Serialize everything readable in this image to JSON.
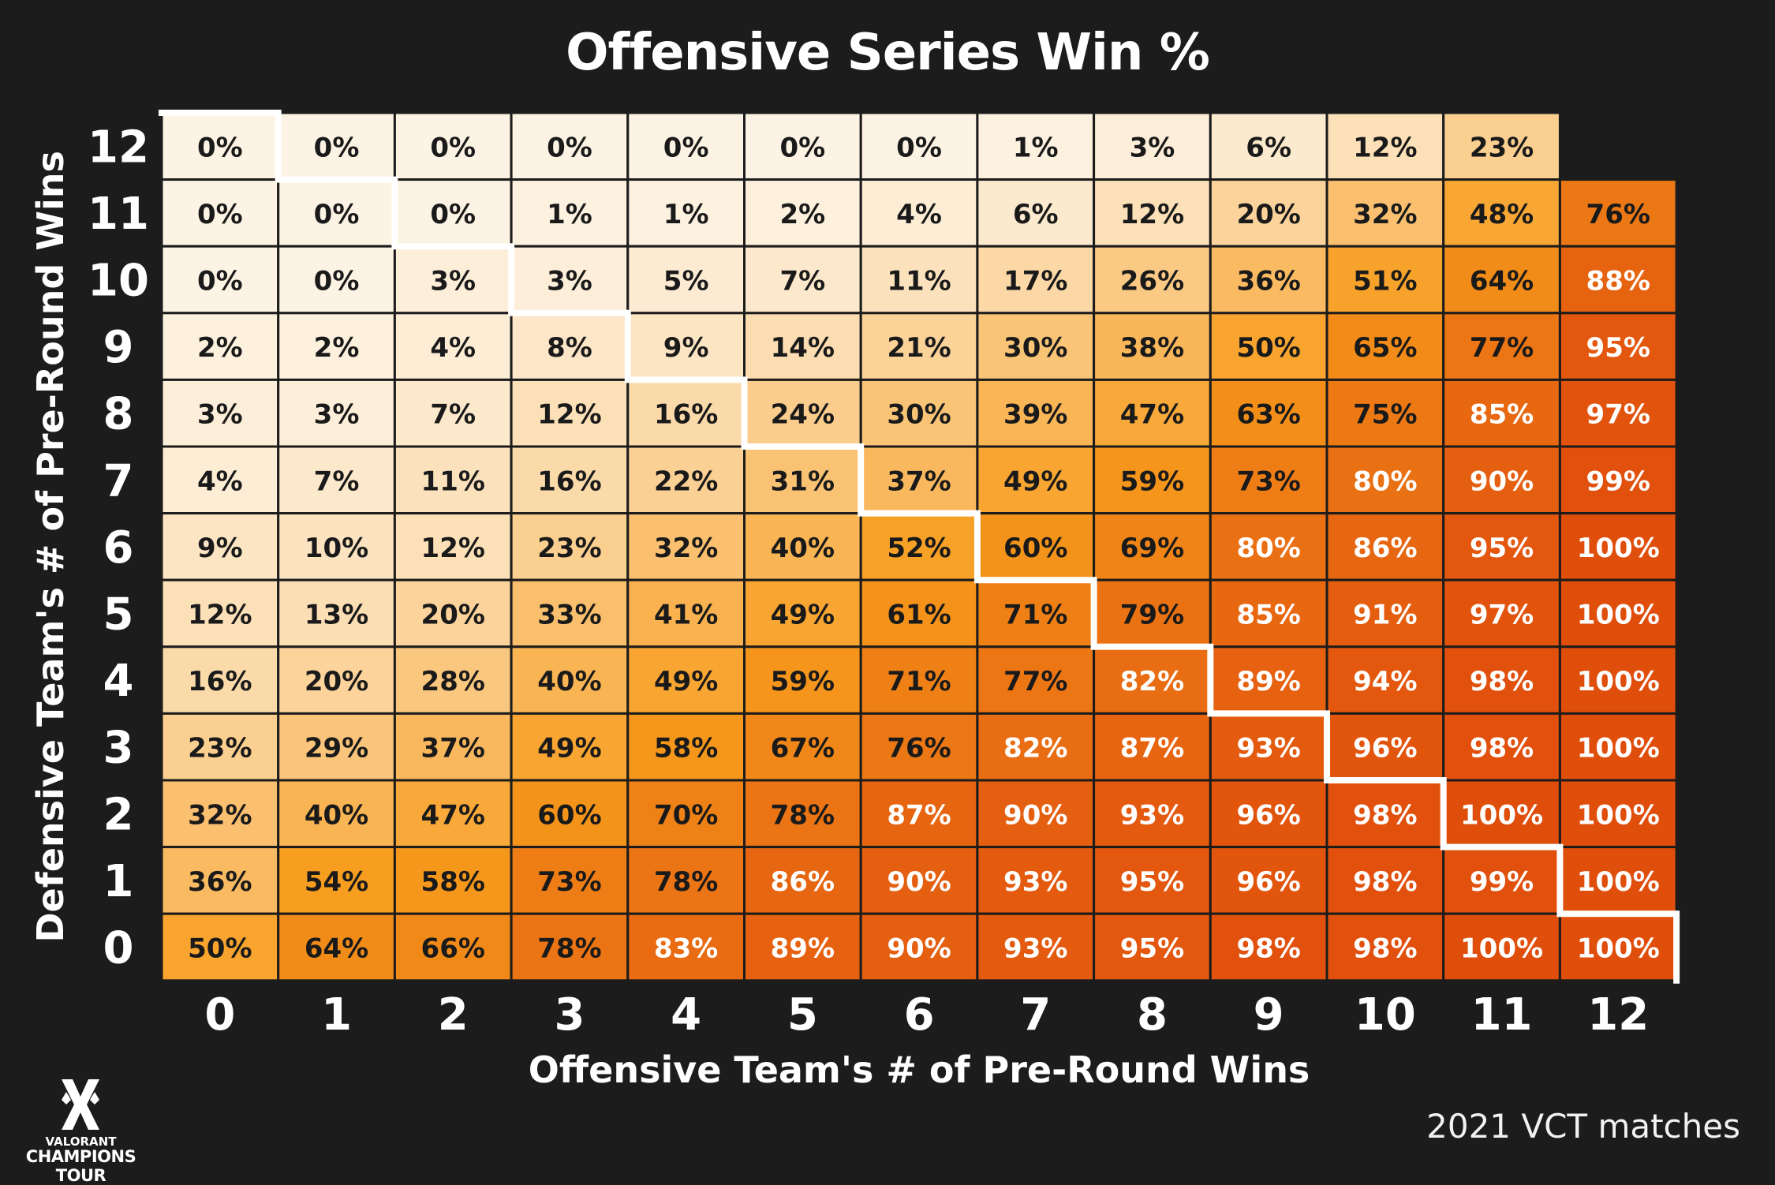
{
  "title": "Offensive Series Win %",
  "footnote": "2021 VCT matches",
  "logo": {
    "line1": "VALORANT",
    "line2": "CHAMPIONS TOUR",
    "icon": "vct-logo-icon"
  },
  "colors": {
    "background": "#1c1c1c",
    "low": "#fdf3e4",
    "mid": "#f79c1c",
    "high": "#e04e0c",
    "staircase": "#ffffff"
  },
  "chart_data": {
    "type": "heatmap",
    "title": "Offensive Series Win %",
    "xlabel": "Offensive Team's # of Pre-Round Wins",
    "ylabel": "Defensive Team's # of Pre-Round Wins",
    "x": [
      "0",
      "1",
      "2",
      "3",
      "4",
      "5",
      "6",
      "7",
      "8",
      "9",
      "10",
      "11",
      "12"
    ],
    "y": [
      "12",
      "11",
      "10",
      "9",
      "8",
      "7",
      "6",
      "5",
      "4",
      "3",
      "2",
      "1",
      "0"
    ],
    "value_format": "percent",
    "values": [
      [
        0,
        0,
        0,
        0,
        0,
        0,
        0,
        1,
        3,
        6,
        12,
        23,
        null
      ],
      [
        0,
        0,
        0,
        1,
        1,
        2,
        4,
        6,
        12,
        20,
        32,
        48,
        76
      ],
      [
        0,
        0,
        3,
        3,
        5,
        7,
        11,
        17,
        26,
        36,
        51,
        64,
        88
      ],
      [
        2,
        2,
        4,
        8,
        9,
        14,
        21,
        30,
        38,
        50,
        65,
        77,
        95
      ],
      [
        3,
        3,
        7,
        12,
        16,
        24,
        30,
        39,
        47,
        63,
        75,
        85,
        97
      ],
      [
        4,
        7,
        11,
        16,
        22,
        31,
        37,
        49,
        59,
        73,
        80,
        90,
        99
      ],
      [
        9,
        10,
        12,
        23,
        32,
        40,
        52,
        60,
        69,
        80,
        86,
        95,
        100
      ],
      [
        12,
        13,
        20,
        33,
        41,
        49,
        61,
        71,
        79,
        85,
        91,
        97,
        100
      ],
      [
        16,
        20,
        28,
        40,
        49,
        59,
        71,
        77,
        82,
        89,
        94,
        98,
        100
      ],
      [
        23,
        29,
        37,
        49,
        58,
        67,
        76,
        82,
        87,
        93,
        96,
        98,
        100
      ],
      [
        32,
        40,
        47,
        60,
        70,
        78,
        87,
        90,
        93,
        96,
        98,
        100,
        100
      ],
      [
        36,
        54,
        58,
        73,
        78,
        86,
        90,
        93,
        95,
        96,
        98,
        99,
        100
      ],
      [
        50,
        64,
        66,
        78,
        83,
        89,
        90,
        93,
        95,
        98,
        98,
        100,
        100
      ]
    ],
    "annotation": "staircase line along the diagonal where offensive wins equal defensive wins"
  }
}
